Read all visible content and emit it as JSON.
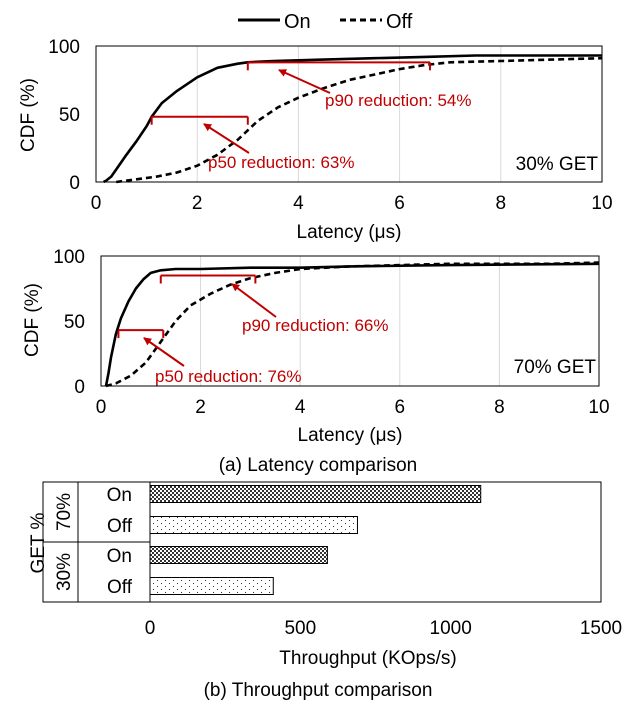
{
  "legend": {
    "items": [
      {
        "label": "On",
        "style": "solid"
      },
      {
        "label": "Off",
        "style": "dashed"
      }
    ]
  },
  "captions": {
    "a": "(a) Latency comparison",
    "b": "(b) Throughput comparison"
  },
  "colors": {
    "annotation": "#c00000",
    "line": "#000000",
    "bar_outline": "#000000"
  },
  "chart_data": [
    {
      "type": "line",
      "panel_label": "30% GET",
      "xlabel": "Latency (μs)",
      "ylabel": "CDF (%)",
      "xlim": [
        0,
        10
      ],
      "ylim": [
        0,
        100
      ],
      "xticks": [
        0,
        2,
        4,
        6,
        8,
        10
      ],
      "yticks": [
        0,
        50,
        100
      ],
      "grid": "vertical",
      "series": [
        {
          "name": "On",
          "style": "solid",
          "x": [
            0.15,
            0.2,
            0.3,
            0.45,
            0.6,
            0.8,
            1.0,
            1.1,
            1.3,
            1.6,
            2.0,
            2.4,
            2.8,
            3.0,
            3.5,
            4.5,
            5.5,
            6.5,
            7.5,
            8.5,
            10.0
          ],
          "y": [
            0,
            1,
            4,
            12,
            20,
            30,
            41,
            48,
            58,
            67,
            77,
            84,
            87,
            88,
            89,
            90,
            91,
            92,
            93,
            93,
            93
          ]
        },
        {
          "name": "Off",
          "style": "dashed",
          "x": [
            0.4,
            0.8,
            1.2,
            1.6,
            2.0,
            2.4,
            2.8,
            3.0,
            3.2,
            3.6,
            4.0,
            4.5,
            5.0,
            5.5,
            6.0,
            6.5,
            7.0,
            8.0,
            9.0,
            10.0
          ],
          "y": [
            0,
            2,
            4,
            7,
            12,
            20,
            31,
            38,
            45,
            55,
            62,
            69,
            75,
            79,
            83,
            86,
            88,
            89,
            90,
            91
          ]
        }
      ],
      "annotations": [
        {
          "text": "p90 reduction: 54%",
          "from": 3.0,
          "to": 6.6,
          "y": 88
        },
        {
          "text": "p50 reduction: 63%",
          "from": 1.1,
          "to": 3.0,
          "y": 48
        }
      ]
    },
    {
      "type": "line",
      "panel_label": "70% GET",
      "xlabel": "Latency (μs)",
      "ylabel": "CDF (%)",
      "xlim": [
        0,
        10
      ],
      "ylim": [
        0,
        100
      ],
      "xticks": [
        0,
        2,
        4,
        6,
        8,
        10
      ],
      "yticks": [
        0,
        50,
        100
      ],
      "grid": "vertical",
      "series": [
        {
          "name": "On",
          "style": "solid",
          "x": [
            0.1,
            0.15,
            0.2,
            0.3,
            0.4,
            0.55,
            0.7,
            0.85,
            1.0,
            1.2,
            1.5,
            2.0,
            3.0,
            4.0,
            5.0,
            7.0,
            10.0
          ],
          "y": [
            0,
            10,
            22,
            40,
            52,
            65,
            75,
            82,
            87,
            89,
            90,
            90,
            91,
            91,
            92,
            93,
            94
          ]
        },
        {
          "name": "Off",
          "style": "dashed",
          "x": [
            0.1,
            0.3,
            0.6,
            0.9,
            1.2,
            1.5,
            1.8,
            2.2,
            2.6,
            3.0,
            3.5,
            4.0,
            5.0,
            6.0,
            7.0,
            8.0,
            9.0,
            10.0
          ],
          "y": [
            0,
            2,
            8,
            18,
            34,
            50,
            62,
            71,
            78,
            83,
            87,
            90,
            92,
            93,
            94,
            94,
            94,
            95
          ]
        }
      ],
      "annotations": [
        {
          "text": "p90 reduction: 66%",
          "from": 1.2,
          "to": 3.1,
          "y": 85
        },
        {
          "text": "p50 reduction: 76%",
          "from": 0.35,
          "to": 1.25,
          "y": 43
        }
      ]
    },
    {
      "type": "bar",
      "orientation": "horizontal",
      "xlabel": "Throughput (KOps/s)",
      "ylabel": "GET %",
      "xlim": [
        0,
        1500
      ],
      "xticks": [
        0,
        500,
        1000,
        1500
      ],
      "groups": [
        {
          "label": "70%",
          "bars": [
            {
              "label": "On",
              "value": 1100,
              "pattern": "dense"
            },
            {
              "label": "Off",
              "value": 690,
              "pattern": "sparse"
            }
          ]
        },
        {
          "label": "30%",
          "bars": [
            {
              "label": "On",
              "value": 590,
              "pattern": "dense"
            },
            {
              "label": "Off",
              "value": 410,
              "pattern": "sparse"
            }
          ]
        }
      ]
    }
  ]
}
